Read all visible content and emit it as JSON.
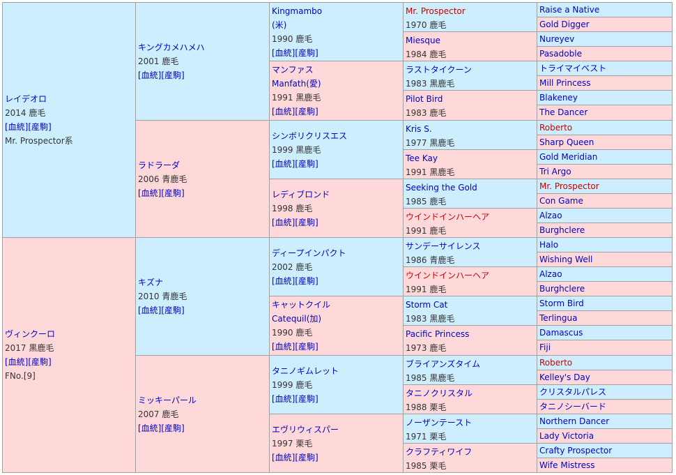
{
  "gen1": [
    {
      "name": "レイデオロ",
      "info": "2014 鹿毛",
      "links": "[血統][産駒]",
      "extra": "Mr. Prospector系"
    },
    {
      "name": "ヴィンクーロ",
      "info": "2017 黒鹿毛",
      "links": "[血統][産駒]",
      "extra": "FNo.[9]"
    }
  ],
  "gen2": [
    {
      "name": "キングカメハメハ",
      "info": "2001 鹿毛",
      "links": "[血統][産駒]"
    },
    {
      "name": "ラドラーダ",
      "info": "2006 青鹿毛",
      "links": "[血統][産駒]"
    },
    {
      "name": "キズナ",
      "info": "2010 青鹿毛",
      "links": "[血統][産駒]"
    },
    {
      "name": "ミッキーパール",
      "info": "2007 鹿毛",
      "links": "[血統][産駒]"
    }
  ],
  "gen3": [
    {
      "name": "Kingmambo",
      "name2": "(米)",
      "info": "1990 鹿毛",
      "links": "[血統][産駒]"
    },
    {
      "name": "マンファス",
      "name2": "Manfath(愛)",
      "info": "1991 黒鹿毛",
      "links": "[血統][産駒]"
    },
    {
      "name": "シンボリクリスエス",
      "name2": "",
      "info": "1999 黒鹿毛",
      "links": "[血統][産駒]"
    },
    {
      "name": "レディブロンド",
      "name2": "",
      "info": "1998 鹿毛",
      "links": "[血統][産駒]"
    },
    {
      "name": "ディープインパクト",
      "name2": "",
      "info": "2002 鹿毛",
      "links": "[血統][産駒]"
    },
    {
      "name": "キャットクイル",
      "name2": "Catequil(加)",
      "info": "1990 鹿毛",
      "links": "[血統][産駒]"
    },
    {
      "name": "タニノギムレット",
      "name2": "",
      "info": "1999 鹿毛",
      "links": "[血統][産駒]"
    },
    {
      "name": "エヴリウィスパー",
      "name2": "",
      "info": "1997 栗毛",
      "links": "[血統][産駒]"
    }
  ],
  "gen4": [
    {
      "name": "Mr. Prospector",
      "info": "1970 鹿毛",
      "highlight": true
    },
    {
      "name": "Miesque",
      "info": "1984 鹿毛",
      "highlight": false
    },
    {
      "name": "ラストタイクーン",
      "info": "1983 黒鹿毛",
      "highlight": false
    },
    {
      "name": "Pilot Bird",
      "info": "1983 鹿毛",
      "highlight": false
    },
    {
      "name": "Kris S.",
      "info": "1977 黒鹿毛",
      "highlight": false
    },
    {
      "name": "Tee Kay",
      "info": "1991 黒鹿毛",
      "highlight": false
    },
    {
      "name": "Seeking the Gold",
      "info": "1985 鹿毛",
      "highlight": false
    },
    {
      "name": "ウインドインハーヘア",
      "info": "1991 鹿毛",
      "highlight": true
    },
    {
      "name": "サンデーサイレンス",
      "info": "1986 青鹿毛",
      "highlight": false
    },
    {
      "name": "ウインドインハーヘア",
      "info": "1991 鹿毛",
      "highlight": true
    },
    {
      "name": "Storm Cat",
      "info": "1983 黒鹿毛",
      "highlight": false
    },
    {
      "name": "Pacific Princess",
      "info": "1973 鹿毛",
      "highlight": false
    },
    {
      "name": "ブライアンズタイム",
      "info": "1985 黒鹿毛",
      "highlight": false
    },
    {
      "name": "タニノクリスタル",
      "info": "1988 栗毛",
      "highlight": false
    },
    {
      "name": "ノーザンテースト",
      "info": "1971 栗毛",
      "highlight": false
    },
    {
      "name": "クラフティワイフ",
      "info": "1985 栗毛",
      "highlight": false
    }
  ],
  "gen5": [
    {
      "name": "Raise a Native",
      "highlight": false
    },
    {
      "name": "Gold Digger",
      "highlight": false
    },
    {
      "name": "Nureyev",
      "highlight": false
    },
    {
      "name": "Pasadoble",
      "highlight": false
    },
    {
      "name": "トライマイベスト",
      "highlight": false
    },
    {
      "name": "Mill Princess",
      "highlight": false
    },
    {
      "name": "Blakeney",
      "highlight": false
    },
    {
      "name": "The Dancer",
      "highlight": false
    },
    {
      "name": "Roberto",
      "highlight": true
    },
    {
      "name": "Sharp Queen",
      "highlight": false
    },
    {
      "name": "Gold Meridian",
      "highlight": false
    },
    {
      "name": "Tri Argo",
      "highlight": false
    },
    {
      "name": "Mr. Prospector",
      "highlight": true
    },
    {
      "name": "Con Game",
      "highlight": false
    },
    {
      "name": "Alzao",
      "highlight": false
    },
    {
      "name": "Burghclere",
      "highlight": false
    },
    {
      "name": "Halo",
      "highlight": false
    },
    {
      "name": "Wishing Well",
      "highlight": false
    },
    {
      "name": "Alzao",
      "highlight": false
    },
    {
      "name": "Burghclere",
      "highlight": false
    },
    {
      "name": "Storm Bird",
      "highlight": false
    },
    {
      "name": "Terlingua",
      "highlight": false
    },
    {
      "name": "Damascus",
      "highlight": false
    },
    {
      "name": "Fiji",
      "highlight": false
    },
    {
      "name": "Roberto",
      "highlight": true
    },
    {
      "name": "Kelley's Day",
      "highlight": false
    },
    {
      "name": "クリスタルパレス",
      "highlight": false
    },
    {
      "name": "タニノシーバード",
      "highlight": false
    },
    {
      "name": "Northern Dancer",
      "highlight": false
    },
    {
      "name": "Lady Victoria",
      "highlight": false
    },
    {
      "name": "Crafty Prospector",
      "highlight": false
    },
    {
      "name": "Wife Mistress",
      "highlight": false
    }
  ]
}
